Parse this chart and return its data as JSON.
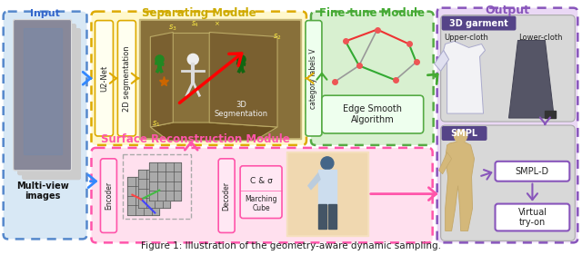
{
  "caption": "Figure 1: Illustration of the geometry-aware dynamic sampling.",
  "title_input": "Input",
  "title_separating": "Separating Module",
  "title_finetune": "Fine-tune Module",
  "title_output": "Output",
  "title_surface": "Surface Reconstruction Module",
  "label_multiview": "Multi-view\nimages",
  "label_u2net": "U2-Net",
  "label_2dseg": "2D segmentation",
  "label_3dseg": "3D\nSegmentation",
  "label_cat_labels": "category labels V",
  "label_edge_smooth": "Edge Smooth\nAlgorithm",
  "label_encoder": "Encoder",
  "label_decoder": "Decoder",
  "label_c_sigma": "C & σ",
  "label_marching": "Marching\nCube",
  "label_3dgarment": "3D garment",
  "label_uppercloth": "Upper-cloth",
  "label_lowercloth": "Lower-cloth",
  "label_smpl": "SMPL",
  "label_smpld": "SMPL-D",
  "label_virtual": "Virtual\ntry-on",
  "color_input_border": "#5588CC",
  "color_input_bg": "#D8E8F5",
  "color_separating_border": "#DDAA00",
  "color_separating_bg": "#FFF8CC",
  "color_finetune_border": "#55AA44",
  "color_finetune_bg": "#D8F0D0",
  "color_output_border": "#8855BB",
  "color_output_bg": "#EAD8F5",
  "color_surface_border": "#FF55AA",
  "color_surface_bg": "#FFE0EE",
  "color_title_input": "#3366CC",
  "color_title_separating": "#CCAA00",
  "color_title_finetune": "#44AA33",
  "color_title_output": "#8855BB",
  "color_title_surface": "#FF55AA",
  "color_smpld_box_border": "#8855BB",
  "color_virtual_box_border": "#8855BB",
  "color_arrow_blue": "#3388FF",
  "color_arrow_yellow": "#DDAA00",
  "color_arrow_green": "#44AA33",
  "color_arrow_pink": "#FF55AA",
  "color_arrow_purple": "#8855BB"
}
